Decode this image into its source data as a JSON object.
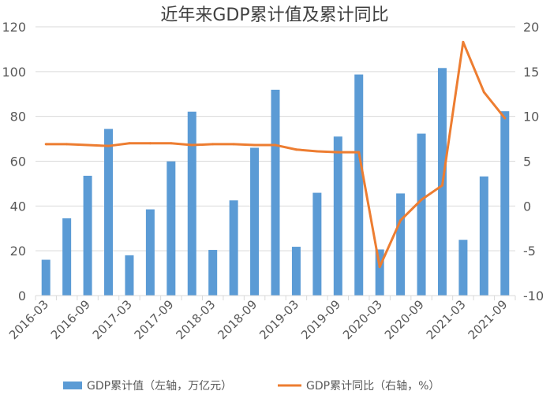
{
  "chart_data": {
    "type": "bar+line",
    "title": "近年来GDP累计值及累计同比",
    "categories": [
      "2016-03",
      "2016-06",
      "2016-09",
      "2016-12",
      "2017-03",
      "2017-06",
      "2017-09",
      "2017-12",
      "2018-03",
      "2018-06",
      "2018-09",
      "2018-12",
      "2019-03",
      "2019-06",
      "2019-09",
      "2019-12",
      "2020-03",
      "2020-06",
      "2020-09",
      "2020-12",
      "2021-03",
      "2021-06",
      "2021-09"
    ],
    "tick_labels": [
      "2016-03",
      "2016-09",
      "2017-03",
      "2017-09",
      "2018-03",
      "2018-09",
      "2019-03",
      "2019-09",
      "2020-03",
      "2020-09",
      "2021-03",
      "2021-09"
    ],
    "series": [
      {
        "name": "GDP累计值（左轴，万亿元）",
        "type": "bar",
        "axis": "left",
        "color": "#5B9BD5",
        "values": [
          16.0,
          34.5,
          53.5,
          74.4,
          18.0,
          38.5,
          59.9,
          82.1,
          20.4,
          42.5,
          66.0,
          91.9,
          21.8,
          45.9,
          71.0,
          98.7,
          20.6,
          45.6,
          72.3,
          101.6,
          24.9,
          53.2,
          82.3
        ]
      },
      {
        "name": "GDP累计同比（右轴，%）",
        "type": "line",
        "axis": "right",
        "color": "#ED7D31",
        "values": [
          6.9,
          6.9,
          6.8,
          6.7,
          7.0,
          7.0,
          7.0,
          6.8,
          6.9,
          6.9,
          6.8,
          6.8,
          6.3,
          6.1,
          6.0,
          6.0,
          -6.8,
          -1.6,
          0.7,
          2.3,
          18.3,
          12.7,
          9.8
        ]
      }
    ],
    "y_left": {
      "min": 0,
      "max": 120,
      "ticks": [
        0,
        20,
        40,
        60,
        80,
        100,
        120
      ]
    },
    "y_right": {
      "min": -10,
      "max": 20,
      "ticks": [
        -10,
        -5,
        0,
        5,
        10,
        15,
        20
      ]
    },
    "grid": true,
    "legend_position": "bottom"
  }
}
